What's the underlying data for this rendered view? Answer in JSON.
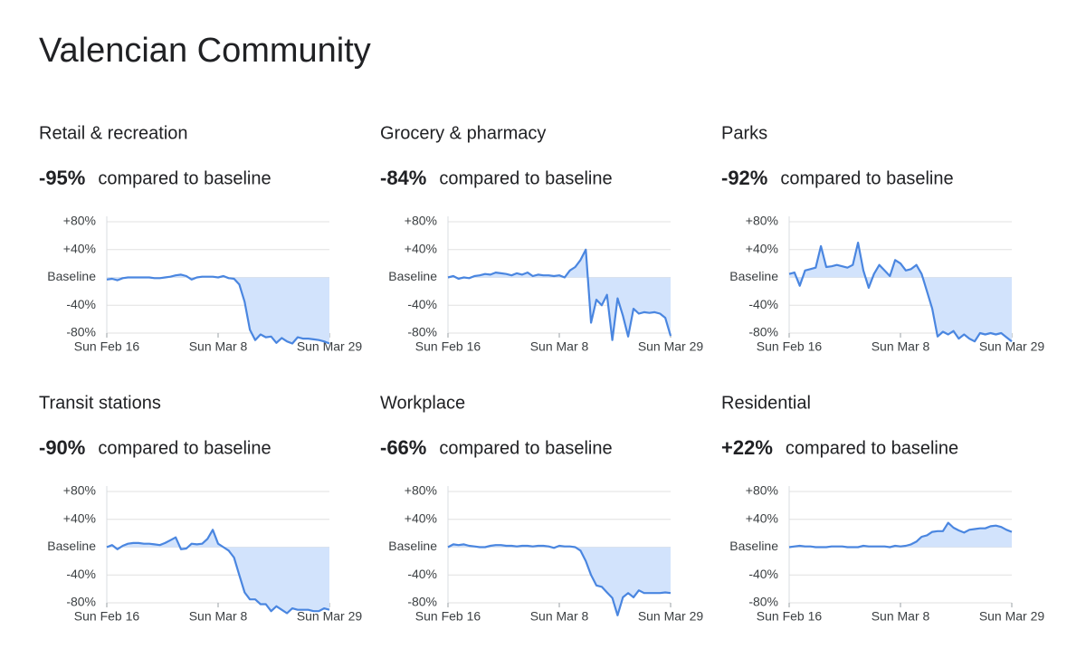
{
  "title": "Valencian Community",
  "chart_data": [
    {
      "type": "line",
      "title": "Retail & recreation",
      "subtitle": "compared to baseline",
      "color": "#4a86e0",
      "fill": "#d2e3fc",
      "categories": [
        "Sun Feb 16",
        null,
        null,
        null,
        null,
        null,
        null,
        null,
        null,
        null,
        null,
        null,
        null,
        null,
        null,
        null,
        null,
        null,
        null,
        null,
        null,
        "Sun Mar 8",
        null,
        null,
        null,
        null,
        null,
        null,
        null,
        null,
        null,
        null,
        null,
        null,
        null,
        null,
        null,
        null,
        null,
        null,
        null,
        null,
        "Sun Mar 29"
      ],
      "values": [
        -3,
        -2,
        -4,
        -1,
        0,
        0,
        0,
        0,
        0,
        -1,
        -1,
        0,
        1,
        3,
        4,
        2,
        -3,
        0,
        1,
        1,
        1,
        0,
        2,
        -1,
        -2,
        -10,
        -35,
        -75,
        -90,
        -82,
        -86,
        -85,
        -94,
        -87,
        -92,
        -95,
        -86,
        -88,
        -88,
        -89,
        -90,
        -92,
        -95
      ],
      "value_labels": [
        null,
        null,
        null,
        null,
        null,
        null,
        null,
        null,
        null,
        null,
        null,
        null,
        null,
        null,
        null,
        null,
        null,
        null,
        null,
        null,
        null,
        null,
        null,
        null,
        null,
        null,
        null,
        null,
        null,
        null,
        null,
        null,
        null,
        null,
        null,
        null,
        null,
        null,
        null,
        null,
        null,
        null,
        "-95%"
      ],
      "ylim": [
        -80,
        80
      ],
      "yticks": [
        {
          "value": 80,
          "label": "+80%"
        },
        {
          "value": 40,
          "label": "+40%"
        },
        {
          "value": 0,
          "label": "Baseline"
        },
        {
          "value": -40,
          "label": "-40%"
        },
        {
          "value": -80,
          "label": "-80%"
        }
      ],
      "grid": true
    },
    {
      "type": "line",
      "title": "Grocery & pharmacy",
      "subtitle": "compared to baseline",
      "color": "#4a86e0",
      "fill": "#d2e3fc",
      "categories": [
        "Sun Feb 16",
        null,
        null,
        null,
        null,
        null,
        null,
        null,
        null,
        null,
        null,
        null,
        null,
        null,
        null,
        null,
        null,
        null,
        null,
        null,
        null,
        "Sun Mar 8",
        null,
        null,
        null,
        null,
        null,
        null,
        null,
        null,
        null,
        null,
        null,
        null,
        null,
        null,
        null,
        null,
        null,
        null,
        null,
        null,
        "Sun Mar 29"
      ],
      "values": [
        0,
        2,
        -2,
        0,
        -1,
        2,
        3,
        5,
        4,
        7,
        6,
        5,
        3,
        6,
        4,
        7,
        2,
        4,
        3,
        3,
        2,
        3,
        0,
        10,
        15,
        25,
        40,
        -65,
        -32,
        -40,
        -25,
        -90,
        -30,
        -55,
        -85,
        -45,
        -52,
        -50,
        -51,
        -50,
        -52,
        -58,
        -84
      ],
      "value_labels": [
        null,
        null,
        null,
        null,
        null,
        null,
        null,
        null,
        null,
        null,
        null,
        null,
        null,
        null,
        null,
        null,
        null,
        null,
        null,
        null,
        null,
        null,
        null,
        null,
        null,
        null,
        null,
        null,
        null,
        null,
        null,
        null,
        null,
        null,
        null,
        null,
        null,
        null,
        null,
        null,
        null,
        null,
        "-84%"
      ],
      "ylim": [
        -80,
        80
      ],
      "yticks": [
        {
          "value": 80,
          "label": "+80%"
        },
        {
          "value": 40,
          "label": "+40%"
        },
        {
          "value": 0,
          "label": "Baseline"
        },
        {
          "value": -40,
          "label": "-40%"
        },
        {
          "value": -80,
          "label": "-80%"
        }
      ],
      "grid": true
    },
    {
      "type": "line",
      "title": "Parks",
      "subtitle": "compared to baseline",
      "color": "#4a86e0",
      "fill": "#d2e3fc",
      "categories": [
        "Sun Feb 16",
        null,
        null,
        null,
        null,
        null,
        null,
        null,
        null,
        null,
        null,
        null,
        null,
        null,
        null,
        null,
        null,
        null,
        null,
        null,
        null,
        "Sun Mar 8",
        null,
        null,
        null,
        null,
        null,
        null,
        null,
        null,
        null,
        null,
        null,
        null,
        null,
        null,
        null,
        null,
        null,
        null,
        null,
        null,
        "Sun Mar 29"
      ],
      "values": [
        5,
        7,
        -12,
        10,
        12,
        14,
        45,
        15,
        16,
        18,
        16,
        14,
        18,
        50,
        10,
        -15,
        5,
        18,
        10,
        2,
        25,
        20,
        10,
        12,
        18,
        5,
        -20,
        -45,
        -85,
        -78,
        -82,
        -77,
        -88,
        -82,
        -88,
        -92,
        -80,
        -82,
        -80,
        -82,
        -80,
        -86,
        -92
      ],
      "value_labels": [
        null,
        null,
        null,
        null,
        null,
        null,
        null,
        null,
        null,
        null,
        null,
        null,
        null,
        null,
        null,
        null,
        null,
        null,
        null,
        null,
        null,
        null,
        null,
        null,
        null,
        null,
        null,
        null,
        null,
        null,
        null,
        null,
        null,
        null,
        null,
        null,
        null,
        null,
        null,
        null,
        null,
        null,
        "-92%"
      ],
      "ylim": [
        -80,
        80
      ],
      "yticks": [
        {
          "value": 80,
          "label": "+80%"
        },
        {
          "value": 40,
          "label": "+40%"
        },
        {
          "value": 0,
          "label": "Baseline"
        },
        {
          "value": -40,
          "label": "-40%"
        },
        {
          "value": -80,
          "label": "-80%"
        }
      ],
      "grid": true
    },
    {
      "type": "line",
      "title": "Transit stations",
      "subtitle": "compared to baseline",
      "color": "#4a86e0",
      "fill": "#d2e3fc",
      "categories": [
        "Sun Feb 16",
        null,
        null,
        null,
        null,
        null,
        null,
        null,
        null,
        null,
        null,
        null,
        null,
        null,
        null,
        null,
        null,
        null,
        null,
        null,
        null,
        "Sun Mar 8",
        null,
        null,
        null,
        null,
        null,
        null,
        null,
        null,
        null,
        null,
        null,
        null,
        null,
        null,
        null,
        null,
        null,
        null,
        null,
        null,
        "Sun Mar 29"
      ],
      "values": [
        0,
        3,
        -3,
        2,
        5,
        6,
        6,
        5,
        5,
        4,
        3,
        6,
        10,
        14,
        -3,
        -2,
        5,
        4,
        5,
        12,
        25,
        5,
        0,
        -5,
        -15,
        -40,
        -65,
        -75,
        -75,
        -82,
        -82,
        -92,
        -85,
        -90,
        -95,
        -88,
        -90,
        -90,
        -90,
        -92,
        -92,
        -88,
        -90
      ],
      "value_labels": [
        null,
        null,
        null,
        null,
        null,
        null,
        null,
        null,
        null,
        null,
        null,
        null,
        null,
        null,
        null,
        null,
        null,
        null,
        null,
        null,
        null,
        null,
        null,
        null,
        null,
        null,
        null,
        null,
        null,
        null,
        null,
        null,
        null,
        null,
        null,
        null,
        null,
        null,
        null,
        null,
        null,
        null,
        "-90%"
      ],
      "ylim": [
        -80,
        80
      ],
      "yticks": [
        {
          "value": 80,
          "label": "+80%"
        },
        {
          "value": 40,
          "label": "+40%"
        },
        {
          "value": 0,
          "label": "Baseline"
        },
        {
          "value": -40,
          "label": "-40%"
        },
        {
          "value": -80,
          "label": "-80%"
        }
      ],
      "grid": true
    },
    {
      "type": "line",
      "title": "Workplace",
      "subtitle": "compared to baseline",
      "color": "#4a86e0",
      "fill": "#d2e3fc",
      "categories": [
        "Sun Feb 16",
        null,
        null,
        null,
        null,
        null,
        null,
        null,
        null,
        null,
        null,
        null,
        null,
        null,
        null,
        null,
        null,
        null,
        null,
        null,
        null,
        "Sun Mar 8",
        null,
        null,
        null,
        null,
        null,
        null,
        null,
        null,
        null,
        null,
        null,
        null,
        null,
        null,
        null,
        null,
        null,
        null,
        null,
        null,
        "Sun Mar 29"
      ],
      "values": [
        0,
        4,
        3,
        4,
        2,
        1,
        0,
        0,
        2,
        3,
        3,
        2,
        2,
        1,
        2,
        2,
        1,
        2,
        2,
        1,
        -1,
        2,
        1,
        1,
        0,
        -5,
        -20,
        -40,
        -55,
        -57,
        -65,
        -73,
        -98,
        -72,
        -66,
        -72,
        -62,
        -66,
        -66,
        -66,
        -66,
        -65,
        -66
      ],
      "value_labels": [
        null,
        null,
        null,
        null,
        null,
        null,
        null,
        null,
        null,
        null,
        null,
        null,
        null,
        null,
        null,
        null,
        null,
        null,
        null,
        null,
        null,
        null,
        null,
        null,
        null,
        null,
        null,
        null,
        null,
        null,
        null,
        null,
        null,
        null,
        null,
        null,
        null,
        null,
        null,
        null,
        null,
        null,
        "-66%"
      ],
      "ylim": [
        -80,
        80
      ],
      "yticks": [
        {
          "value": 80,
          "label": "+80%"
        },
        {
          "value": 40,
          "label": "+40%"
        },
        {
          "value": 0,
          "label": "Baseline"
        },
        {
          "value": -40,
          "label": "-40%"
        },
        {
          "value": -80,
          "label": "-80%"
        }
      ],
      "grid": true
    },
    {
      "type": "line",
      "title": "Residential",
      "subtitle": "compared to baseline",
      "color": "#4a86e0",
      "fill": "#d2e3fc",
      "categories": [
        "Sun Feb 16",
        null,
        null,
        null,
        null,
        null,
        null,
        null,
        null,
        null,
        null,
        null,
        null,
        null,
        null,
        null,
        null,
        null,
        null,
        null,
        null,
        "Sun Mar 8",
        null,
        null,
        null,
        null,
        null,
        null,
        null,
        null,
        null,
        null,
        null,
        null,
        null,
        null,
        null,
        null,
        null,
        null,
        null,
        null,
        "Sun Mar 29"
      ],
      "values": [
        0,
        1,
        2,
        1,
        1,
        0,
        0,
        0,
        1,
        1,
        1,
        0,
        0,
        0,
        2,
        1,
        1,
        1,
        1,
        0,
        2,
        1,
        2,
        4,
        8,
        15,
        17,
        22,
        23,
        23,
        35,
        28,
        24,
        21,
        25,
        26,
        27,
        27,
        30,
        31,
        29,
        25,
        22
      ],
      "value_labels": [
        null,
        null,
        null,
        null,
        null,
        null,
        null,
        null,
        null,
        null,
        null,
        null,
        null,
        null,
        null,
        null,
        null,
        null,
        null,
        null,
        null,
        null,
        null,
        null,
        null,
        null,
        null,
        null,
        null,
        null,
        null,
        null,
        null,
        null,
        null,
        null,
        null,
        null,
        null,
        null,
        null,
        null,
        "+22%"
      ],
      "ylim": [
        -80,
        80
      ],
      "yticks": [
        {
          "value": 80,
          "label": "+80%"
        },
        {
          "value": 40,
          "label": "+40%"
        },
        {
          "value": 0,
          "label": "Baseline"
        },
        {
          "value": -40,
          "label": "-40%"
        },
        {
          "value": -80,
          "label": "-80%"
        }
      ],
      "grid": true
    }
  ]
}
